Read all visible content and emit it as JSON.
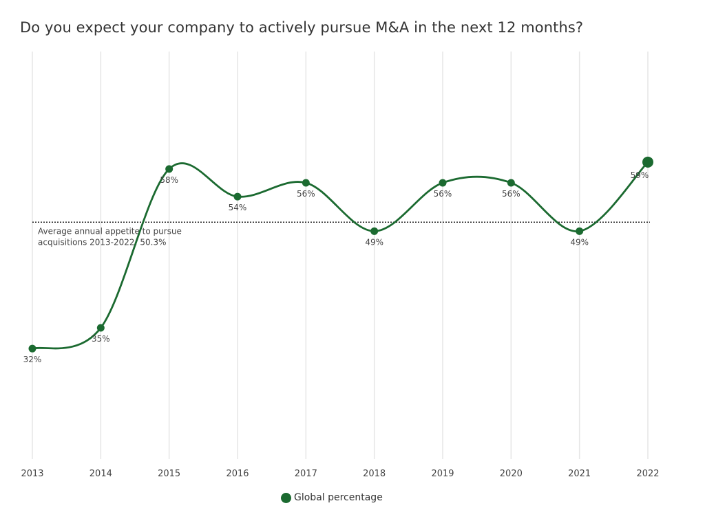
{
  "chart_data": {
    "type": "line",
    "title": "Do you expect your company to actively pursue M&A in the next 12 months?",
    "categories": [
      "2013",
      "2014",
      "2015",
      "2016",
      "2017",
      "2018",
      "2019",
      "2020",
      "2021",
      "2022"
    ],
    "series": [
      {
        "name": "Global percentage",
        "values": [
          32,
          35,
          58,
          54,
          56,
          49,
          56,
          56,
          49,
          59
        ],
        "labels": [
          "32%",
          "35%",
          "58%",
          "54%",
          "56%",
          "49%",
          "56%",
          "56%",
          "49%",
          "59%"
        ],
        "color": "#1b6a30"
      }
    ],
    "reference_line": {
      "value": 50.3,
      "label_line1": "Average annual appetite to pursue",
      "label_line2": "acquisitions 2013-2022: 50.3%",
      "style": "dotted"
    },
    "ylim": [
      16,
      75
    ],
    "xlabel": "",
    "ylabel": "",
    "grid": "vertical",
    "legend": "bottom-center",
    "line_style": "smooth"
  }
}
